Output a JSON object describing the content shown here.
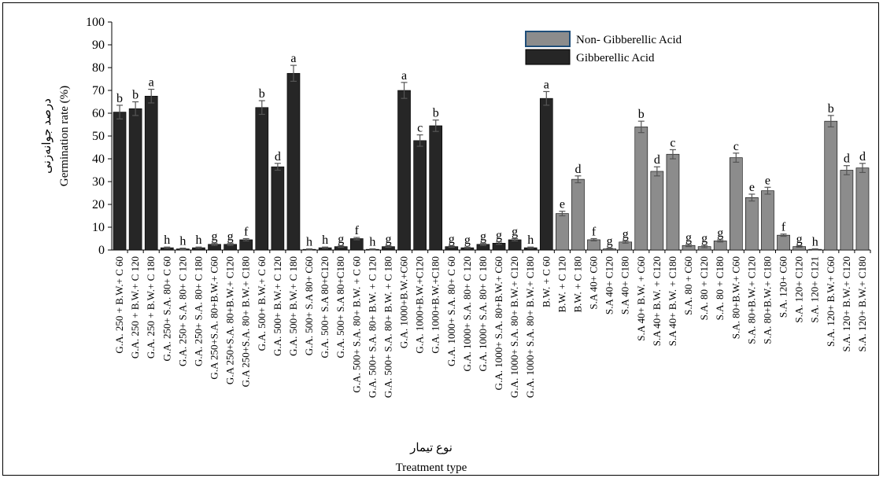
{
  "chart_data": {
    "type": "bar",
    "title": "",
    "xlabel": "Treatment type",
    "xlabel_secondary": "نوع تیمار",
    "ylabel": "Germination rate (%)",
    "ylabel_secondary": "درصد جوانه‌زنی",
    "ylim": [
      0,
      100
    ],
    "yticks": [
      0,
      10,
      20,
      30,
      40,
      50,
      60,
      70,
      80,
      90,
      100
    ],
    "legend_position": "top-center",
    "legend": [
      {
        "name": "Non- Gibberellic Acid",
        "color": "#8c8c8c"
      },
      {
        "name": "Gibberellic Acid",
        "color": "#262626"
      }
    ],
    "categories": [
      "G.A. 250 + B.W.+ C 60",
      "G.A. 250 + B.W.+ C 120",
      "G.A. 250 + B.W.+ C 180",
      "G.A. 250+ S.A. 80+ C 60",
      "G.A. 250+ S.A. 80+ C 120",
      "G.A. 250+ S.A. 80+ C 180",
      "G.A 250+S.A. 80+B.W.+ C60",
      "G.A 250+S.A. 80+B.W.+ C120",
      "G.A 250+S.A. 80+ B.W.+ C180",
      "G.A. 500+ B.W.+ C 60",
      "G.A. 500+ B.W.+ C 120",
      "G.A. 500+ B.W.+ C 180",
      "G.A. 500+ S.A 80+ C60",
      "G.A. 500+ S.A 80+C120",
      "G.A. 500+ S.A 80+C180",
      "G.A. 500+ S.A. 80+ B.W. + C 60",
      "G.A. 500+ S.A. 80+ B.W. + C 120",
      "G.A. 500+ S.A. 80+ B.W. + C 180",
      "G.A. 1000+B.W.+C60",
      "G.A. 1000+B.W.+C120",
      "G.A. 1000+B.W.+C180",
      "G.A. 1000+ S.A. 80+ C 60",
      "G.A. 1000+ S.A. 80+ C 120",
      "G.A. 1000+ S.A. 80+ C 180",
      "G.A. 1000+ S.A. 80+B.W.+ C60",
      "G.A. 1000+ S.A. 80+ B.W.+ C120",
      "G.A. 1000+ S.A. 80+ B.W.+ C180",
      "B.W. + C 60",
      "B.W. + C 120",
      "B.W. + C 180",
      "S.A 40+ C60",
      "S.A 40+ C120",
      "S.A 40+ C180",
      "S.A 40+ B.W. + C60",
      "S.A 40+ B.W. + C120",
      "S.A 40+ B.W. + C180",
      "S.A. 80 + C60",
      "S.A. 80 + C120",
      "S.A. 80 + C180",
      "S.A. 80+B.W.+ C60",
      "S.A. 80+B.W.+ C120",
      "S.A. 80+B.W.+ C180",
      "S.A. 120+ C60",
      "S.A. 120+ C120",
      "S.A. 120+ C121",
      "S.A. 120+ B.W.+ C60",
      "S.A. 120+ B.W.+ C120",
      "S.A. 120+ B.W.+ C180"
    ],
    "values": [
      60.5,
      62,
      67.5,
      1,
      0.5,
      1,
      2.5,
      2.5,
      4.5,
      62.5,
      36.5,
      77.5,
      0.3,
      1,
      1.5,
      5,
      0.3,
      1.5,
      70,
      48,
      54.5,
      1.5,
      1,
      2.5,
      3,
      4.5,
      1,
      66.5,
      16,
      31,
      4.5,
      0.5,
      3.5,
      54,
      34.5,
      42,
      2,
      1.5,
      4,
      40.5,
      23,
      26,
      6.5,
      1.5,
      0.3,
      56.5,
      35,
      36
    ],
    "errors": [
      3,
      3,
      3,
      0.3,
      0.3,
      0.3,
      0.5,
      0.5,
      0.5,
      3,
      1.5,
      3.5,
      0.2,
      0.3,
      0.3,
      0.5,
      0.2,
      0.3,
      3.5,
      2.5,
      2.5,
      0.3,
      0.3,
      0.5,
      0.5,
      0.5,
      0.3,
      3,
      1,
      1.5,
      0.5,
      0.3,
      0.5,
      2.5,
      2,
      2,
      0.5,
      0.5,
      0.5,
      2,
      1.5,
      1.5,
      0.5,
      0.3,
      0.2,
      2.5,
      2,
      2
    ],
    "series_index": [
      1,
      1,
      1,
      1,
      1,
      1,
      1,
      1,
      1,
      1,
      1,
      1,
      1,
      1,
      1,
      1,
      1,
      1,
      1,
      1,
      1,
      1,
      1,
      1,
      1,
      1,
      1,
      1,
      0,
      0,
      0,
      0,
      0,
      0,
      0,
      0,
      0,
      0,
      0,
      0,
      0,
      0,
      0,
      0,
      0,
      0,
      0,
      0
    ],
    "significance": [
      "b",
      "b",
      "a",
      "h",
      "h",
      "h",
      "g",
      "g",
      "f",
      "b",
      "d",
      "a",
      "h",
      "h",
      "g",
      "f",
      "h",
      "g",
      "a",
      "c",
      "b",
      "g",
      "g",
      "g",
      "g",
      "g",
      "h",
      "a",
      "e",
      "d",
      "f",
      "g",
      "g",
      "b",
      "d",
      "c",
      "g",
      "g",
      "g",
      "c",
      "e",
      "e",
      "f",
      "g",
      "h",
      "b",
      "d",
      "d"
    ],
    "grid": false
  }
}
